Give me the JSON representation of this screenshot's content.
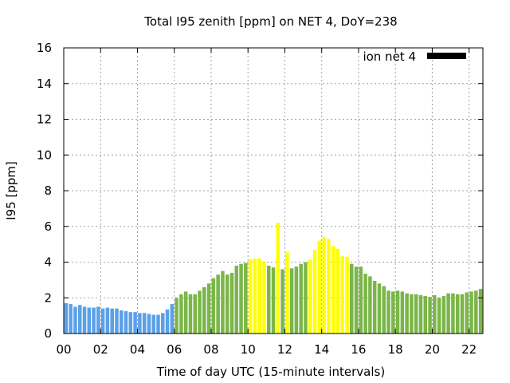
{
  "chart_data": {
    "type": "bar",
    "title": "Total I95 zenith [ppm] on NET 4, DoY=238",
    "xlabel": "Time of day UTC (15-minute intervals)",
    "ylabel": "I95 [ppm]",
    "ylim": [
      0,
      16
    ],
    "xlim": [
      0,
      22.75
    ],
    "x_ticks": [
      "00",
      "02",
      "04",
      "06",
      "08",
      "10",
      "12",
      "14",
      "16",
      "18",
      "20",
      "22"
    ],
    "y_ticks": [
      "0",
      "2",
      "4",
      "6",
      "8",
      "10",
      "12",
      "14",
      "16"
    ],
    "grid": true,
    "legend_position": "top-right",
    "legend": [
      {
        "name": "ion net 4",
        "color": "#000000"
      }
    ],
    "interval_hours": 0.25,
    "values": [
      1.7,
      1.65,
      1.5,
      1.6,
      1.5,
      1.45,
      1.45,
      1.5,
      1.4,
      1.45,
      1.4,
      1.4,
      1.3,
      1.25,
      1.2,
      1.2,
      1.15,
      1.15,
      1.1,
      1.05,
      1.05,
      1.15,
      1.35,
      1.65,
      2.0,
      2.2,
      2.35,
      2.2,
      2.2,
      2.4,
      2.6,
      2.8,
      3.1,
      3.3,
      3.5,
      3.3,
      3.4,
      3.8,
      3.9,
      3.95,
      4.15,
      4.2,
      4.2,
      4.0,
      3.8,
      3.7,
      6.2,
      3.6,
      4.55,
      3.65,
      3.75,
      3.9,
      4.0,
      4.15,
      4.7,
      5.2,
      5.4,
      5.3,
      4.9,
      4.75,
      4.35,
      4.3,
      3.9,
      3.75,
      3.75,
      3.35,
      3.2,
      2.95,
      2.8,
      2.65,
      2.4,
      2.35,
      2.4,
      2.35,
      2.25,
      2.2,
      2.2,
      2.15,
      2.1,
      2.05,
      2.15,
      2.0,
      2.1,
      2.25,
      2.25,
      2.2,
      2.2,
      2.3,
      2.35,
      2.4,
      2.5
    ],
    "categories": [
      "blue",
      "blue",
      "blue",
      "blue",
      "blue",
      "blue",
      "blue",
      "blue",
      "blue",
      "blue",
      "blue",
      "blue",
      "blue",
      "blue",
      "blue",
      "blue",
      "blue",
      "blue",
      "blue",
      "blue",
      "blue",
      "blue",
      "blue",
      "blue",
      "green",
      "green",
      "green",
      "green",
      "green",
      "green",
      "green",
      "green",
      "green",
      "green",
      "green",
      "green",
      "green",
      "green",
      "green",
      "green",
      "yellow",
      "yellow",
      "yellow",
      "yellow",
      "green",
      "green",
      "yellow",
      "green",
      "yellow",
      "green",
      "green",
      "green",
      "green",
      "yellow",
      "yellow",
      "yellow",
      "yellow",
      "yellow",
      "yellow",
      "yellow",
      "yellow",
      "yellow",
      "green",
      "green",
      "green",
      "green",
      "green",
      "green",
      "green",
      "green",
      "green",
      "green",
      "green",
      "green",
      "green",
      "green",
      "green",
      "green",
      "green",
      "green",
      "green",
      "green",
      "green",
      "green",
      "green",
      "green",
      "green",
      "green",
      "green",
      "green",
      "green"
    ],
    "colors": {
      "blue": "#5ba0e8",
      "green": "#7ab648",
      "yellow": "#ffff00"
    }
  }
}
